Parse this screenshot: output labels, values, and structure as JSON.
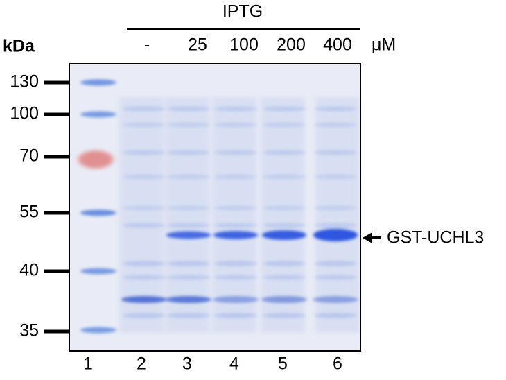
{
  "header": {
    "label": "IPTG",
    "unit": "μM"
  },
  "kda_label": "kDa",
  "concentrations": [
    "-",
    "25",
    "100",
    "200",
    "400"
  ],
  "markers": [
    130,
    100,
    70,
    55,
    40,
    35
  ],
  "lanes": [
    1,
    2,
    3,
    4,
    5,
    6
  ],
  "band_label": "GST-UCHL3"
}
